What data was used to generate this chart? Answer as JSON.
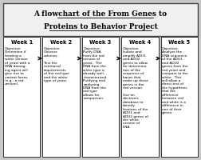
{
  "bg_color": "#c8c8c8",
  "box_bg": "#ffffff",
  "title_line1": "A flowchart of the From Genes to",
  "title_line2": "Proteins to Behavior Project",
  "weeks": [
    {
      "header": "Week 1",
      "text": "Objective:\nDetermine if\ntreating a\nwhite version\nof yeast with a\nDNA damag-\ning agent will\ngive rise to\nvariant forms\n(e.g., a red\nversion)."
    },
    {
      "header": "Week 2",
      "text": "Objective:\nObserve\ncolonies.\n\nTest the\nnutritional\nrequirements\nof the red type\nand the white\ntype of yeast."
    },
    {
      "header": "Week 3",
      "text": "Objective:\nPurify DNA\nfrom the red\nversion of\nyeast.  The\nDNA from the\nwhite type is\nalready well-\ncharacterized.\nPurifying and\nanalyzing\nDNA from the\nred type\nallows for\ncomparison."
    },
    {
      "header": "Week 4",
      "text": "Objective:\nIsolate and\namplify ADU1\nand ADU2\ngenes to allow\nfor determina-\ntion of the\nsequence of\nbases that\nmake up these\ngenes in the\nred version.\n\nUse an\nelectronic\ndatabase to\nidentify\nfeatures of the\nADU1 and\nADU2 genes of\nthe white\nversion of\nDNA."
    },
    {
      "header": "Week 5",
      "text": "Objective:\nAnalyze the\nDNA sequence\nof the ADU1\nand ADU2\ngenes from the\nred yeast and\ncompare to the\nwhite.  This\nwill allow a\ndirect test of\nthe hypothesis\nthat the\ndifference\nbetween red\nand white is a\ndifference in\none of their\ngenes."
    }
  ],
  "title_fontsize": 6.5,
  "header_fontsize": 4.8,
  "body_fontsize": 3.1
}
